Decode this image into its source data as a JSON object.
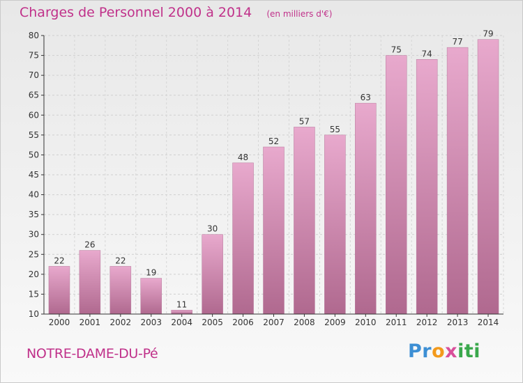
{
  "header": {
    "title": "Charges de Personnel 2000 à 2014",
    "unit": "(en milliers d'€)"
  },
  "footer": {
    "commune": "NOTRE-DAME-DU-Pé",
    "logo": [
      "Pr",
      "o",
      "x",
      "iti"
    ]
  },
  "colors": {
    "accent": "#c0318a",
    "bar_light": "#e8a9cd",
    "bar_dark": "#b0698f",
    "axis": "#333333"
  },
  "chart_data": {
    "type": "bar",
    "title": "Charges de Personnel 2000 à 2014",
    "subtitle": "(en milliers d'€)",
    "xlabel": "",
    "ylabel": "",
    "categories": [
      "2000",
      "2001",
      "2002",
      "2003",
      "2004",
      "2005",
      "2006",
      "2007",
      "2008",
      "2009",
      "2010",
      "2011",
      "2012",
      "2013",
      "2014"
    ],
    "values": [
      22,
      26,
      22,
      19,
      11,
      30,
      48,
      52,
      57,
      55,
      63,
      75,
      74,
      77,
      79
    ],
    "ylim": [
      10,
      80
    ],
    "yticks": [
      10,
      15,
      20,
      25,
      30,
      35,
      40,
      45,
      50,
      55,
      60,
      65,
      70,
      75,
      80
    ],
    "grid": true,
    "data_labels": true
  }
}
